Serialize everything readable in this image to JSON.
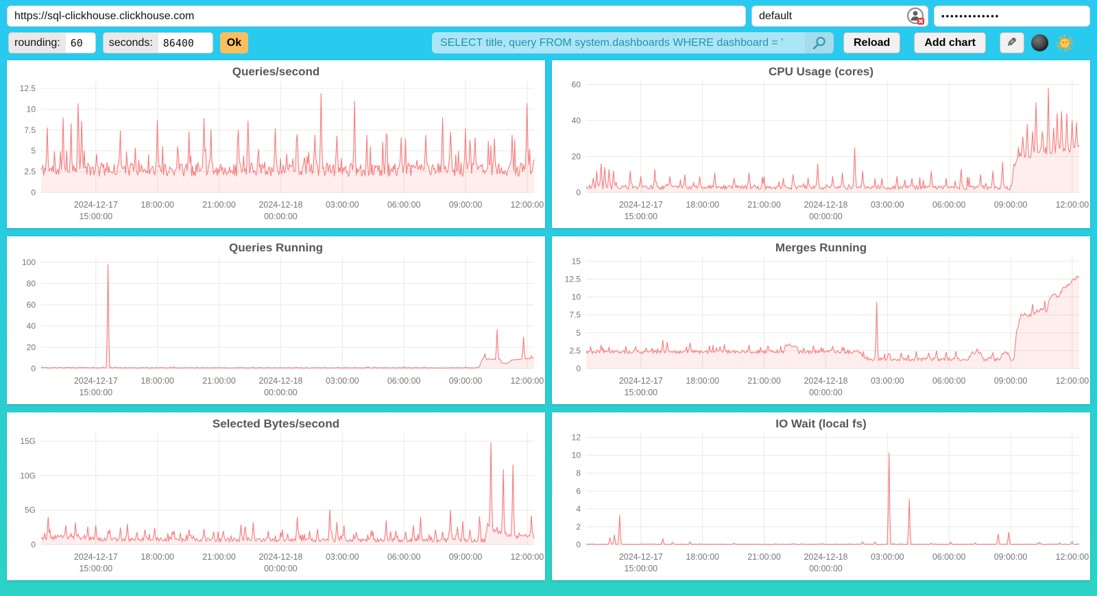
{
  "topbar": {
    "url": "https://sql-clickhouse.clickhouse.com",
    "user": "default",
    "password_mask": "•••••••••••••"
  },
  "toolbar": {
    "rounding_label": "rounding:",
    "rounding_value": "60",
    "seconds_label": "seconds:",
    "seconds_value": "86400",
    "ok_label": "Ok",
    "search_value": "SELECT title, query FROM system.dashboards WHERE dashboard = '",
    "reload_label": "Reload",
    "add_chart_label": "Add chart",
    "pencil_icon": "✎"
  },
  "colors": {
    "background_top": "#29C9F2",
    "background_bottom": "#2BD2C5",
    "line": "#F87B7B",
    "fill": "rgba(248,123,123,0.13)",
    "grid": "#ECE8DC",
    "tick_text": "#767676",
    "title_text": "#57575a",
    "ok_button": "#F9BE5E",
    "search_bg": "#ACE6F6",
    "search_text": "#2391AF"
  },
  "x_ticks": [
    {
      "lines": [
        "2024-12-17",
        "15:00:00"
      ],
      "pos": 0.111
    },
    {
      "lines": [
        "18:00:00"
      ],
      "pos": 0.236
    },
    {
      "lines": [
        "21:00:00"
      ],
      "pos": 0.361
    },
    {
      "lines": [
        "2024-12-18",
        "00:00:00"
      ],
      "pos": 0.486
    },
    {
      "lines": [
        "03:00:00"
      ],
      "pos": 0.611
    },
    {
      "lines": [
        "06:00:00"
      ],
      "pos": 0.736
    },
    {
      "lines": [
        "09:00:00"
      ],
      "pos": 0.861
    },
    {
      "lines": [
        "12:00:00"
      ],
      "pos": 0.986
    }
  ],
  "chart_data": [
    {
      "type": "line",
      "title": "Queries/second",
      "y_ticks": [
        {
          "label": "0",
          "v": 0
        },
        {
          "label": "2.5",
          "v": 2.5
        },
        {
          "label": "5",
          "v": 5
        },
        {
          "label": "7.5",
          "v": 7.5
        },
        {
          "label": "10",
          "v": 10
        },
        {
          "label": "12.5",
          "v": 12.5
        }
      ],
      "y_max": 13.4,
      "seed": 11,
      "base": [
        [
          0,
          2.6
        ],
        [
          1,
          2.6
        ]
      ],
      "noise": 1.6,
      "micro_p": 0.1,
      "micro_amp": 3.5,
      "min": 1.9,
      "spikes": [
        [
          0.012,
          7.8
        ],
        [
          0.045,
          9.0
        ],
        [
          0.06,
          8.3
        ],
        [
          0.075,
          10.7
        ],
        [
          0.082,
          8.6
        ],
        [
          0.16,
          7.4
        ],
        [
          0.235,
          8.7
        ],
        [
          0.3,
          7.3
        ],
        [
          0.33,
          8.9
        ],
        [
          0.345,
          7.6
        ],
        [
          0.4,
          7.5
        ],
        [
          0.42,
          8.6
        ],
        [
          0.475,
          7.7
        ],
        [
          0.52,
          7.0
        ],
        [
          0.555,
          6.9
        ],
        [
          0.568,
          11.9
        ],
        [
          0.6,
          6.8
        ],
        [
          0.635,
          11.0
        ],
        [
          0.66,
          6.9
        ],
        [
          0.7,
          7.0
        ],
        [
          0.73,
          6.6
        ],
        [
          0.78,
          6.9
        ],
        [
          0.815,
          9.0
        ],
        [
          0.83,
          7.3
        ],
        [
          0.86,
          7.7
        ],
        [
          0.88,
          6.6
        ],
        [
          0.92,
          6.5
        ],
        [
          0.955,
          6.9
        ],
        [
          0.985,
          10.7
        ]
      ]
    },
    {
      "type": "line",
      "title": "CPU Usage (cores)",
      "y_ticks": [
        {
          "label": "0",
          "v": 0
        },
        {
          "label": "20",
          "v": 20
        },
        {
          "label": "40",
          "v": 40
        },
        {
          "label": "60",
          "v": 60
        }
      ],
      "y_max": 62,
      "seed": 22,
      "base": [
        [
          0,
          2.8
        ],
        [
          0.85,
          2.5
        ],
        [
          0.862,
          2.5
        ],
        [
          0.872,
          18
        ],
        [
          0.88,
          21
        ],
        [
          0.9,
          20
        ],
        [
          0.92,
          23
        ],
        [
          0.94,
          21
        ],
        [
          0.96,
          24
        ],
        [
          0.98,
          23
        ],
        [
          1,
          26
        ]
      ],
      "noise": 2.2,
      "micro_p": 0.08,
      "micro_amp": 6,
      "min": 0.8,
      "spikes": [
        [
          0.015,
          8
        ],
        [
          0.022,
          12
        ],
        [
          0.03,
          16
        ],
        [
          0.038,
          14
        ],
        [
          0.046,
          13
        ],
        [
          0.055,
          12
        ],
        [
          0.09,
          12
        ],
        [
          0.11,
          9
        ],
        [
          0.14,
          13
        ],
        [
          0.17,
          9
        ],
        [
          0.2,
          10
        ],
        [
          0.23,
          9
        ],
        [
          0.26,
          11
        ],
        [
          0.3,
          8
        ],
        [
          0.33,
          11
        ],
        [
          0.36,
          9
        ],
        [
          0.4,
          8
        ],
        [
          0.42,
          10
        ],
        [
          0.45,
          8
        ],
        [
          0.47,
          16
        ],
        [
          0.5,
          9
        ],
        [
          0.52,
          11
        ],
        [
          0.545,
          25
        ],
        [
          0.56,
          12
        ],
        [
          0.6,
          8
        ],
        [
          0.63,
          9
        ],
        [
          0.66,
          8
        ],
        [
          0.7,
          12
        ],
        [
          0.73,
          8
        ],
        [
          0.76,
          13
        ],
        [
          0.8,
          10
        ],
        [
          0.825,
          12
        ],
        [
          0.845,
          17
        ],
        [
          0.885,
          31
        ],
        [
          0.895,
          38
        ],
        [
          0.905,
          34
        ],
        [
          0.912,
          50
        ],
        [
          0.925,
          34
        ],
        [
          0.938,
          58
        ],
        [
          0.948,
          36
        ],
        [
          0.955,
          44
        ],
        [
          0.965,
          45
        ],
        [
          0.975,
          44
        ],
        [
          0.985,
          40
        ],
        [
          0.995,
          39
        ]
      ]
    },
    {
      "type": "line",
      "title": "Queries Running",
      "y_ticks": [
        {
          "label": "0",
          "v": 0
        },
        {
          "label": "20",
          "v": 20
        },
        {
          "label": "40",
          "v": 40
        },
        {
          "label": "60",
          "v": 60
        },
        {
          "label": "80",
          "v": 80
        },
        {
          "label": "100",
          "v": 100
        }
      ],
      "y_max": 105,
      "seed": 33,
      "base": [
        [
          0,
          0.7
        ],
        [
          0.88,
          0.6
        ],
        [
          0.888,
          0.6
        ],
        [
          0.895,
          9
        ],
        [
          0.905,
          8.5
        ],
        [
          0.912,
          9
        ],
        [
          0.92,
          8.5
        ],
        [
          0.93,
          9
        ],
        [
          0.935,
          5
        ],
        [
          0.945,
          4.5
        ],
        [
          0.955,
          8
        ],
        [
          0.965,
          8.5
        ],
        [
          0.975,
          9
        ],
        [
          1,
          9.5
        ]
      ],
      "noise": 0.5,
      "micro_p": 0.05,
      "micro_amp": 0.8,
      "min": 0.2,
      "spikes": [
        [
          0.135,
          98
        ],
        [
          0.9,
          14
        ],
        [
          0.925,
          37
        ],
        [
          0.978,
          30
        ],
        [
          0.995,
          12
        ]
      ]
    },
    {
      "type": "line",
      "title": "Merges Running",
      "y_ticks": [
        {
          "label": "0",
          "v": 0
        },
        {
          "label": "2.5",
          "v": 2.5
        },
        {
          "label": "5",
          "v": 5
        },
        {
          "label": "7.5",
          "v": 7.5
        },
        {
          "label": "10",
          "v": 10
        },
        {
          "label": "12.5",
          "v": 12.5
        },
        {
          "label": "15",
          "v": 15
        }
      ],
      "y_max": 15.6,
      "seed": 44,
      "base": [
        [
          0,
          2.3
        ],
        [
          0.4,
          2.3
        ],
        [
          0.405,
          3.2
        ],
        [
          0.425,
          3.2
        ],
        [
          0.432,
          2.3
        ],
        [
          0.555,
          2.3
        ],
        [
          0.565,
          1.3
        ],
        [
          0.775,
          1.25
        ],
        [
          0.782,
          2.2
        ],
        [
          0.8,
          2.2
        ],
        [
          0.806,
          1.25
        ],
        [
          0.84,
          1.25
        ],
        [
          0.845,
          2.2
        ],
        [
          0.855,
          2.2
        ],
        [
          0.86,
          1.2
        ],
        [
          0.868,
          1.2
        ],
        [
          0.872,
          4.8
        ],
        [
          0.882,
          7.6
        ],
        [
          0.9,
          7.4
        ],
        [
          0.915,
          8.0
        ],
        [
          0.925,
          8.2
        ],
        [
          0.932,
          7.2
        ],
        [
          0.94,
          9.8
        ],
        [
          0.95,
          10.3
        ],
        [
          0.958,
          10.0
        ],
        [
          0.968,
          11.3
        ],
        [
          0.978,
          11.6
        ],
        [
          0.988,
          12.4
        ],
        [
          1,
          12.9
        ]
      ],
      "noise": 0.45,
      "micro_p": 0.07,
      "micro_amp": 0.9,
      "min": 0.9,
      "spikes": [
        [
          0.03,
          3.3
        ],
        [
          0.1,
          3.1
        ],
        [
          0.155,
          4.0
        ],
        [
          0.165,
          3.7
        ],
        [
          0.21,
          3.6
        ],
        [
          0.25,
          3.2
        ],
        [
          0.28,
          3.4
        ],
        [
          0.33,
          3.3
        ],
        [
          0.37,
          3.1
        ],
        [
          0.46,
          3.2
        ],
        [
          0.5,
          3.1
        ],
        [
          0.52,
          3.0
        ],
        [
          0.59,
          9.3
        ],
        [
          0.615,
          2.0
        ],
        [
          0.64,
          2.2
        ],
        [
          0.67,
          2.4
        ],
        [
          0.695,
          2.2
        ],
        [
          0.71,
          2.5
        ],
        [
          0.73,
          2.3
        ],
        [
          0.75,
          2.4
        ],
        [
          0.825,
          2.2
        ],
        [
          0.905,
          9.0
        ],
        [
          0.93,
          9.5
        ]
      ]
    },
    {
      "type": "line",
      "title": "Selected Bytes/second",
      "y_ticks": [
        {
          "label": "0",
          "v": 0
        },
        {
          "label": "5G",
          "v": 5
        },
        {
          "label": "10G",
          "v": 10
        },
        {
          "label": "15G",
          "v": 15
        }
      ],
      "y_max": 16.2,
      "seed": 55,
      "base": [
        [
          0,
          0.9
        ],
        [
          0.04,
          1.1
        ],
        [
          0.08,
          0.9
        ],
        [
          0.12,
          0.7
        ],
        [
          0.9,
          0.55
        ],
        [
          0.905,
          2.6
        ],
        [
          0.92,
          1.9
        ],
        [
          0.935,
          1.6
        ],
        [
          0.95,
          1.3
        ],
        [
          0.965,
          1.1
        ],
        [
          0.98,
          1.2
        ],
        [
          1,
          1.1
        ]
      ],
      "noise": 0.55,
      "micro_p": 0.12,
      "micro_amp": 1.2,
      "min": 0.08,
      "spikes": [
        [
          0.015,
          4.0
        ],
        [
          0.05,
          2.8
        ],
        [
          0.07,
          3.2
        ],
        [
          0.095,
          2.6
        ],
        [
          0.11,
          2.8
        ],
        [
          0.14,
          2.2
        ],
        [
          0.16,
          2.5
        ],
        [
          0.175,
          3.0
        ],
        [
          0.21,
          2.2
        ],
        [
          0.23,
          2.4
        ],
        [
          0.27,
          2.0
        ],
        [
          0.3,
          2.2
        ],
        [
          0.33,
          2.3
        ],
        [
          0.35,
          1.9
        ],
        [
          0.37,
          2.0
        ],
        [
          0.405,
          2.9
        ],
        [
          0.415,
          2.6
        ],
        [
          0.43,
          3.2
        ],
        [
          0.46,
          2.0
        ],
        [
          0.49,
          2.2
        ],
        [
          0.52,
          4.0
        ],
        [
          0.545,
          2.0
        ],
        [
          0.56,
          2.3
        ],
        [
          0.585,
          5.1
        ],
        [
          0.6,
          3.3
        ],
        [
          0.615,
          2.8
        ],
        [
          0.64,
          1.8
        ],
        [
          0.67,
          2.1
        ],
        [
          0.7,
          3.5
        ],
        [
          0.72,
          2.0
        ],
        [
          0.74,
          1.9
        ],
        [
          0.755,
          2.8
        ],
        [
          0.77,
          4.0
        ],
        [
          0.8,
          2.2
        ],
        [
          0.815,
          1.9
        ],
        [
          0.83,
          5.0
        ],
        [
          0.845,
          2.6
        ],
        [
          0.855,
          3.4
        ],
        [
          0.87,
          2.2
        ],
        [
          0.89,
          4.1
        ],
        [
          0.912,
          14.8
        ],
        [
          0.937,
          10.9
        ],
        [
          0.957,
          11.6
        ],
        [
          0.995,
          4.2
        ]
      ]
    },
    {
      "type": "line",
      "title": "IO Wait (local fs)",
      "y_ticks": [
        {
          "label": "0",
          "v": 0
        },
        {
          "label": "2",
          "v": 2
        },
        {
          "label": "4",
          "v": 4
        },
        {
          "label": "6",
          "v": 6
        },
        {
          "label": "8",
          "v": 8
        },
        {
          "label": "10",
          "v": 10
        },
        {
          "label": "12",
          "v": 12
        }
      ],
      "y_max": 12.5,
      "seed": 66,
      "base": [
        [
          0,
          0.04
        ],
        [
          1,
          0.04
        ]
      ],
      "noise": 0.05,
      "micro_p": 0.02,
      "micro_amp": 0.1,
      "min": 0.02,
      "spikes": [
        [
          0.048,
          0.8
        ],
        [
          0.058,
          1.1
        ],
        [
          0.068,
          3.3
        ],
        [
          0.155,
          0.7
        ],
        [
          0.175,
          0.25
        ],
        [
          0.21,
          0.3
        ],
        [
          0.3,
          0.15
        ],
        [
          0.42,
          0.1
        ],
        [
          0.56,
          0.3
        ],
        [
          0.585,
          0.3
        ],
        [
          0.615,
          10.3
        ],
        [
          0.655,
          5.1
        ],
        [
          0.7,
          0.15
        ],
        [
          0.74,
          0.3
        ],
        [
          0.79,
          0.2
        ],
        [
          0.835,
          1.2
        ],
        [
          0.857,
          1.4
        ],
        [
          0.92,
          0.25
        ],
        [
          0.96,
          0.2
        ],
        [
          0.985,
          0.35
        ]
      ]
    }
  ]
}
